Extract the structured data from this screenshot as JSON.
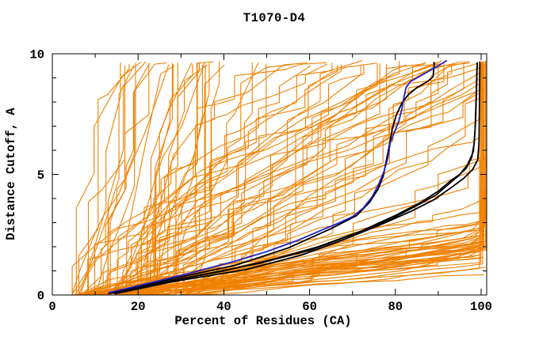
{
  "chart_data": {
    "type": "line",
    "title": "T1070-D4",
    "xlabel": "Percent of Residues (CA)",
    "ylabel": "Distance Cutoff, A",
    "xlim": [
      0,
      101.4
    ],
    "ylim": [
      0,
      10
    ],
    "grid": false,
    "legend": "none",
    "frame": "full-box-inward-ticks",
    "x_major_ticks": [
      0,
      20,
      40,
      60,
      80,
      100
    ],
    "x_minor_ticks": [
      10,
      30,
      50,
      70,
      90
    ],
    "y_major_ticks": [
      0,
      5,
      10
    ],
    "y_minor_ticks": [
      1,
      2,
      3,
      4,
      6,
      7,
      8,
      9
    ],
    "colors": {
      "ensemble": "#f08000",
      "highlight_black": "#000000",
      "highlight_blue": "#2020cc",
      "axis": "#000000",
      "background": "#ffffff"
    },
    "series": [
      {
        "name": "best-black-a",
        "color": "#000000",
        "width": 1.8,
        "points": [
          [
            13,
            0.06
          ],
          [
            25,
            0.5
          ],
          [
            40,
            1.0
          ],
          [
            52,
            1.5
          ],
          [
            62,
            2.0
          ],
          [
            72,
            2.65
          ],
          [
            80,
            3.3
          ],
          [
            86,
            3.85
          ],
          [
            90,
            4.3
          ],
          [
            93,
            4.75
          ],
          [
            95,
            5.0
          ],
          [
            96.5,
            5.25
          ],
          [
            97.8,
            5.7
          ],
          [
            98.4,
            6.3
          ],
          [
            98.7,
            7.2
          ],
          [
            98.9,
            8.3
          ],
          [
            99.1,
            9.65
          ]
        ]
      },
      {
        "name": "best-black-b",
        "color": "#000000",
        "width": 1.8,
        "points": [
          [
            14.5,
            0.05
          ],
          [
            28,
            0.55
          ],
          [
            45,
            1.05
          ],
          [
            58,
            1.65
          ],
          [
            68,
            2.3
          ],
          [
            77,
            2.95
          ],
          [
            84,
            3.5
          ],
          [
            89,
            3.95
          ],
          [
            93,
            4.45
          ],
          [
            96,
            4.85
          ],
          [
            98,
            5.2
          ],
          [
            99.2,
            5.6
          ],
          [
            99.5,
            6.3
          ],
          [
            99.6,
            7.6
          ],
          [
            99.7,
            9.68
          ]
        ]
      },
      {
        "name": "best-black-c",
        "color": "#000000",
        "width": 1.6,
        "points": [
          [
            13.8,
            0.07
          ],
          [
            30,
            0.68
          ],
          [
            48,
            1.3
          ],
          [
            60,
            1.85
          ],
          [
            70,
            2.5
          ],
          [
            79,
            3.15
          ],
          [
            85,
            3.7
          ],
          [
            89.5,
            4.15
          ],
          [
            92.5,
            4.6
          ],
          [
            94.8,
            4.95
          ],
          [
            96.8,
            5.4
          ],
          [
            98.2,
            5.95
          ],
          [
            98.6,
            6.9
          ],
          [
            98.8,
            8.1
          ],
          [
            99.0,
            9.3
          ],
          [
            99.05,
            9.6
          ]
        ]
      },
      {
        "name": "black-follows-blue",
        "color": "#000000",
        "width": 1.8,
        "points": [
          [
            13.5,
            0.08
          ],
          [
            20,
            0.35
          ],
          [
            30,
            0.75
          ],
          [
            43,
            1.25
          ],
          [
            55,
            1.95
          ],
          [
            65,
            2.75
          ],
          [
            71,
            3.3
          ],
          [
            74,
            3.85
          ],
          [
            76,
            4.4
          ],
          [
            77.2,
            4.95
          ],
          [
            77.8,
            5.5
          ],
          [
            78.6,
            6.2
          ],
          [
            79.3,
            6.9
          ],
          [
            80.2,
            7.45
          ],
          [
            81.5,
            7.95
          ],
          [
            83,
            8.3
          ],
          [
            85,
            8.6
          ],
          [
            87.5,
            8.85
          ],
          [
            88.8,
            9.05
          ],
          [
            89.1,
            9.65
          ]
        ]
      },
      {
        "name": "highlight-blue",
        "color": "#2020cc",
        "width": 1.8,
        "points": [
          [
            13.2,
            0.1
          ],
          [
            18,
            0.3
          ],
          [
            25,
            0.6
          ],
          [
            33,
            0.95
          ],
          [
            43,
            1.42
          ],
          [
            50,
            1.8
          ],
          [
            57,
            2.25
          ],
          [
            63,
            2.7
          ],
          [
            67,
            3.0
          ],
          [
            70,
            3.25
          ],
          [
            72.5,
            3.6
          ],
          [
            74.5,
            4.05
          ],
          [
            76,
            4.55
          ],
          [
            77.3,
            5.1
          ],
          [
            78.2,
            5.65
          ],
          [
            78.8,
            6.3
          ],
          [
            79.8,
            6.75
          ],
          [
            80.8,
            7.2
          ],
          [
            81.5,
            7.7
          ],
          [
            82,
            8.2
          ],
          [
            82.5,
            8.6
          ],
          [
            83.5,
            8.85
          ],
          [
            85.5,
            9.05
          ],
          [
            88,
            9.3
          ],
          [
            90,
            9.5
          ],
          [
            92,
            9.72
          ]
        ]
      }
    ],
    "ensemble": {
      "name": "model-ensemble-orange",
      "color": "#f08000",
      "width": 1.1,
      "count": 118,
      "seed": 21,
      "x_start_range": [
        4.5,
        34
      ],
      "y_cutoff_range": [
        9.5,
        9.72
      ],
      "right_edge_range": [
        99.6,
        101.2
      ],
      "classes": [
        {
          "weight": 0.44,
          "slope": [
            0.012,
            0.034
          ],
          "jag_prob": 0.07,
          "dx": [
            4,
            12
          ],
          "jump": [
            0.08,
            0.45
          ]
        },
        {
          "weight": 0.34,
          "slope": [
            0.04,
            0.12
          ],
          "jag_prob": 0.3,
          "dx": [
            2.5,
            9
          ],
          "jump": [
            0.25,
            1.3
          ]
        },
        {
          "weight": 0.22,
          "slope": [
            0.16,
            0.6
          ],
          "jag_prob": 0.5,
          "dx": [
            1.5,
            6
          ],
          "jump": [
            0.4,
            2.6
          ]
        }
      ]
    }
  }
}
